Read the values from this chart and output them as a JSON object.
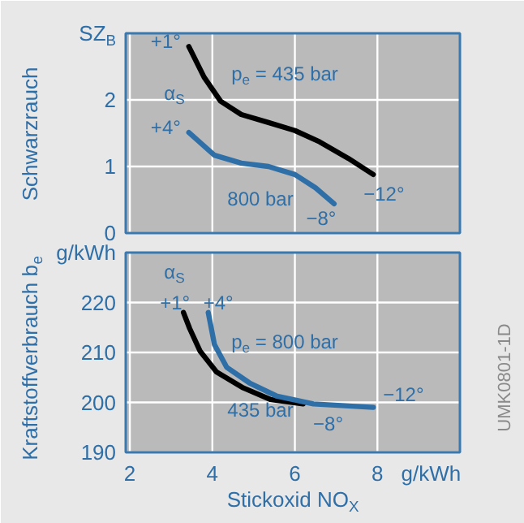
{
  "chart_data": [
    {
      "type": "line",
      "ylabel": "Schwarzrauch",
      "xlim": [
        1.9,
        10
      ],
      "ylim": [
        0,
        3
      ],
      "xticks": [
        2,
        4,
        6,
        8
      ],
      "yticks": [
        0,
        1,
        2,
        {
          "value": 3,
          "label": "SZ$_{B}$"
        }
      ],
      "tick_labels": "y",
      "grid": true,
      "marker": "none",
      "line_style": "solid",
      "series": [
        {
          "color": "#000000",
          "x": [
            3.43,
            3.8,
            4.2,
            4.7,
            5.36,
            6.0,
            6.6,
            7.3,
            7.9
          ],
          "values": [
            2.8,
            2.34,
            1.98,
            1.78,
            1.66,
            1.54,
            1.37,
            1.12,
            0.88
          ]
        },
        {
          "color": "#2f6fa8",
          "x": [
            3.43,
            4.05,
            4.7,
            5.36,
            6.0,
            6.5,
            6.95
          ],
          "values": [
            1.51,
            1.17,
            1.05,
            1.0,
            0.88,
            0.68,
            0.44
          ]
        }
      ],
      "annotations": [
        {
          "text": "+1°",
          "x": 3.43,
          "y": 2.8
        },
        "α$_{S}$",
        "p$_{e}$ = 435 bar",
        {
          "text": "+4°",
          "x": 3.43,
          "y": 1.51
        },
        "800 bar",
        {
          "text": "−8°",
          "x": 6.95,
          "y": 0.44
        },
        {
          "text": "−12°",
          "x": 7.9,
          "y": 0.88
        }
      ]
    },
    {
      "type": "line",
      "ylabel": "Kraftstoffverbrauch b$_{e}$",
      "xlabel": "Stickoxid NO$_{X}$",
      "xlim": [
        1.9,
        10
      ],
      "ylim": [
        190,
        230
      ],
      "xticks": [
        2,
        4,
        6,
        8,
        {
          "value": 9.3,
          "label": "g/kWh"
        }
      ],
      "yticks": [
        190,
        200,
        210,
        220,
        {
          "value": 230,
          "label": "g/kWh"
        }
      ],
      "grid": true,
      "marker": "none",
      "line_style": "solid",
      "series": [
        {
          "color": "#000000",
          "x": [
            3.3,
            3.45,
            3.7,
            4.1,
            4.75,
            5.4,
            6.2
          ],
          "values": [
            218,
            214.8,
            210.3,
            206.1,
            202.9,
            200.6,
            199.7
          ]
        },
        {
          "color": "#2f6fa8",
          "x": [
            3.9,
            4.05,
            4.35,
            4.9,
            5.55,
            6.45,
            7.9
          ],
          "values": [
            218,
            211.6,
            207,
            203.9,
            201.3,
            199.7,
            199
          ]
        }
      ],
      "annotations": [
        "α$_{S}$",
        {
          "text": "+1°",
          "x": 3.3,
          "y": 218
        },
        {
          "text": "+4°",
          "x": 3.9,
          "y": 218
        },
        "p$_{e}$ = 800 bar",
        {
          "text": "−12°",
          "x": 7.9,
          "y": 199
        },
        "435 bar",
        {
          "text": "−8°",
          "x": 7.2,
          "y": 199
        },
        "UMK0801-1D"
      ]
    }
  ]
}
